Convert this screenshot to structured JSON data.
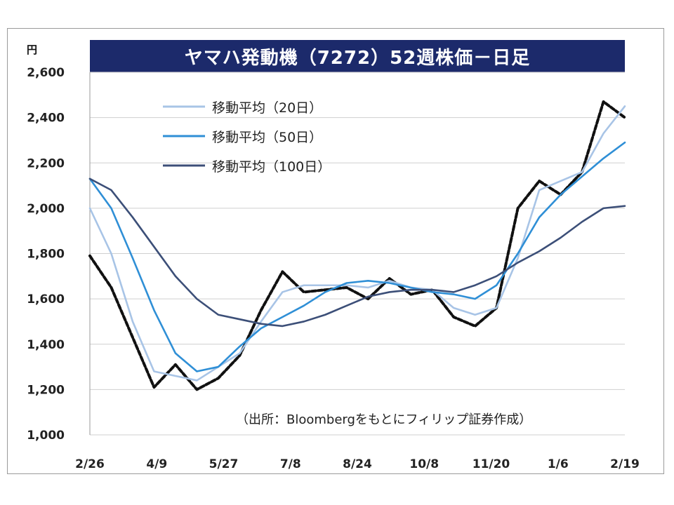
{
  "chart_data": {
    "type": "line",
    "title": "ヤマハ発動機（7272）52週株価－日足",
    "unit": "円",
    "ylim": [
      1000,
      2600
    ],
    "yticks": [
      "1,000",
      "1,200",
      "1,400",
      "1,600",
      "1,800",
      "2,000",
      "2,200",
      "2,400",
      "2,600"
    ],
    "ytick_values": [
      1000,
      1200,
      1400,
      1600,
      1800,
      2000,
      2200,
      2400,
      2600
    ],
    "xlabels": [
      "2/26",
      "4/9",
      "5/27",
      "7/8",
      "8/24",
      "10/8",
      "11/20",
      "1/6",
      "2/19"
    ],
    "grid": "horizontal",
    "legend_position": "top-left",
    "x": [
      0,
      4,
      8,
      12,
      16,
      20,
      24,
      28,
      32,
      36,
      40,
      44,
      48,
      52,
      56,
      60,
      64,
      68,
      72,
      76,
      80,
      84,
      88,
      92,
      96,
      100
    ],
    "series": [
      {
        "name": "",
        "color": "#111111",
        "style": "dashed",
        "values": [
          1790,
          1650,
          1430,
          1210,
          1310,
          1200,
          1250,
          1350,
          1550,
          1720,
          1630,
          1640,
          1650,
          1600,
          1690,
          1620,
          1640,
          1520,
          1480,
          1560,
          2000,
          2120,
          2060,
          2160,
          2470,
          2400
        ]
      },
      {
        "name": "移動平均（20日）",
        "color": "#a8c4e6",
        "values": [
          2000,
          1800,
          1500,
          1280,
          1260,
          1240,
          1300,
          1360,
          1500,
          1630,
          1660,
          1660,
          1660,
          1650,
          1680,
          1650,
          1640,
          1560,
          1530,
          1560,
          1780,
          2080,
          2120,
          2160,
          2330,
          2450
        ]
      },
      {
        "name": "移動平均（50日）",
        "color": "#2f8fd6",
        "values": [
          2130,
          2000,
          1780,
          1550,
          1360,
          1280,
          1300,
          1390,
          1470,
          1520,
          1570,
          1630,
          1670,
          1680,
          1670,
          1650,
          1630,
          1620,
          1600,
          1660,
          1800,
          1960,
          2060,
          2140,
          2220,
          2290
        ]
      },
      {
        "name": "移動平均（100日）",
        "color": "#3c4f78",
        "values": [
          2130,
          2080,
          1960,
          1830,
          1700,
          1600,
          1530,
          1510,
          1490,
          1480,
          1500,
          1530,
          1570,
          1610,
          1630,
          1640,
          1640,
          1630,
          1660,
          1700,
          1760,
          1810,
          1870,
          1940,
          2000,
          2010
        ]
      }
    ],
    "source": "（出所：Bloombergをもとにフィリップ証券作成）"
  }
}
